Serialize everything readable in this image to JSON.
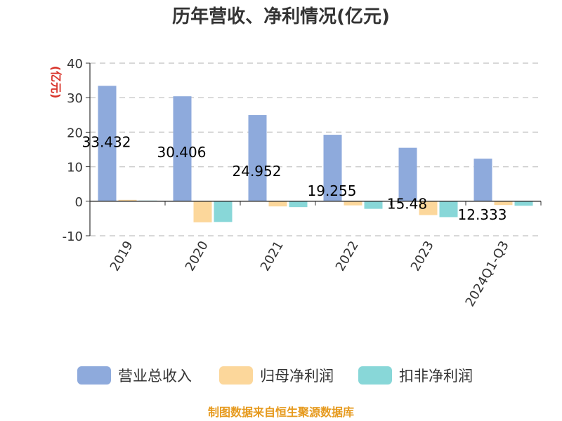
{
  "chart_data": {
    "type": "bar",
    "title": "历年营收、净利情况(亿元)",
    "ylabel": "(亿元)",
    "xlabel": "",
    "ylim": [
      -10,
      40
    ],
    "yticks": [
      40,
      30,
      20,
      10,
      0,
      -10
    ],
    "grid": true,
    "legend_position": "bottom",
    "categories": [
      "2019",
      "2020",
      "2021",
      "2022",
      "2023",
      "2024Q1-Q3"
    ],
    "series": [
      {
        "name": "营业总收入",
        "color": "#8eaadc",
        "values": [
          33.432,
          30.406,
          24.952,
          19.255,
          15.48,
          12.333
        ],
        "labels": [
          "33.432",
          "30.406",
          "24.952",
          "19.255",
          "15.48",
          "12.333"
        ]
      },
      {
        "name": "归母净利润",
        "color": "#fcd79b",
        "values": [
          0.4,
          -6.1,
          -1.5,
          -1.2,
          -4.0,
          -1.1
        ]
      },
      {
        "name": "扣非净利润",
        "color": "#88d7d8",
        "values": [
          0.2,
          -6.0,
          -1.7,
          -2.2,
          -4.6,
          -1.3
        ]
      }
    ],
    "ylabel_color": "#d9342b"
  },
  "source_text": "制图数据来自恒生聚源数据库",
  "source_color": "#e69a1e"
}
